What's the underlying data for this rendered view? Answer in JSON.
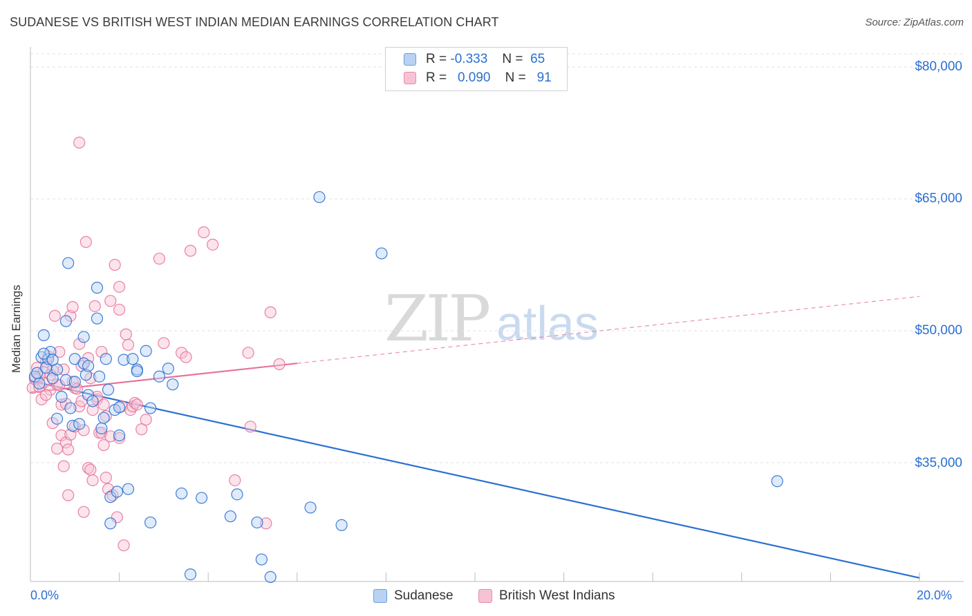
{
  "header": {
    "title": "SUDANESE VS BRITISH WEST INDIAN MEDIAN EARNINGS CORRELATION CHART",
    "source": "Source: ZipAtlas.com"
  },
  "watermark": {
    "zip": "ZIP",
    "atlas": "atlas"
  },
  "legend": {
    "rows": [
      {
        "r_label": "R =",
        "r_value": "-0.333",
        "n_label": "N =",
        "n_value": "65"
      },
      {
        "r_label": "R =",
        "r_value": "0.090",
        "n_label": "N =",
        "n_value": "91"
      }
    ]
  },
  "bottom_legend": {
    "sudanese": "Sudanese",
    "bwi": "British West Indians"
  },
  "x_axis": {
    "start_label": "0.0%",
    "end_label": "20.0%"
  },
  "y_ticks": [
    "$80,000",
    "$65,000",
    "$50,000",
    "$35,000"
  ],
  "colors": {
    "blue": "#2a6fd1",
    "blue_fill": "#b9d2f3",
    "pink": "#e8739a",
    "pink_fill": "#f7c3d4",
    "grid": "#e2e2e2"
  },
  "chart_data": {
    "type": "scatter",
    "title": "SUDANESE VS BRITISH WEST INDIAN MEDIAN EARNINGS CORRELATION CHART",
    "xlabel": "",
    "ylabel": "Median Earnings",
    "xlim": [
      0,
      20
    ],
    "ylim": [
      21000,
      83000
    ],
    "y_ticks": [
      35000,
      50000,
      65000,
      80000
    ],
    "x_ticks": [
      0,
      2,
      4,
      6,
      8,
      10,
      12,
      14,
      16,
      18,
      20
    ],
    "grid": true,
    "series": [
      {
        "name": "Sudanese",
        "color": "blue",
        "r": -0.333,
        "n": 65,
        "trend": {
          "x": [
            0,
            20
          ],
          "y": [
            44300,
            21900
          ],
          "style": "solid"
        },
        "points": [
          [
            0.1,
            44800
          ],
          [
            0.15,
            45200
          ],
          [
            0.2,
            44000
          ],
          [
            0.25,
            47000
          ],
          [
            0.3,
            49500
          ],
          [
            0.35,
            45800
          ],
          [
            0.4,
            46800
          ],
          [
            0.45,
            47600
          ],
          [
            0.5,
            44600
          ],
          [
            0.5,
            46700
          ],
          [
            0.6,
            45600
          ],
          [
            0.6,
            40000
          ],
          [
            0.7,
            42500
          ],
          [
            0.8,
            44400
          ],
          [
            0.8,
            51100
          ],
          [
            0.85,
            57700
          ],
          [
            0.9,
            41200
          ],
          [
            0.95,
            39200
          ],
          [
            1.0,
            46800
          ],
          [
            1.0,
            44200
          ],
          [
            1.1,
            39400
          ],
          [
            1.2,
            46300
          ],
          [
            1.2,
            49300
          ],
          [
            1.25,
            45000
          ],
          [
            1.3,
            46000
          ],
          [
            1.3,
            42700
          ],
          [
            1.4,
            42000
          ],
          [
            1.5,
            54900
          ],
          [
            1.5,
            51400
          ],
          [
            1.55,
            44800
          ],
          [
            1.6,
            38900
          ],
          [
            1.65,
            40100
          ],
          [
            1.7,
            46800
          ],
          [
            1.75,
            43300
          ],
          [
            1.8,
            31100
          ],
          [
            1.8,
            28100
          ],
          [
            1.9,
            41000
          ],
          [
            1.95,
            31700
          ],
          [
            2.0,
            41300
          ],
          [
            2.0,
            38100
          ],
          [
            2.1,
            46700
          ],
          [
            2.2,
            32000
          ],
          [
            2.3,
            46800
          ],
          [
            2.4,
            45600
          ],
          [
            2.4,
            45400
          ],
          [
            2.6,
            47700
          ],
          [
            2.7,
            41200
          ],
          [
            2.7,
            28200
          ],
          [
            2.9,
            44800
          ],
          [
            3.1,
            45700
          ],
          [
            3.2,
            43900
          ],
          [
            3.4,
            31500
          ],
          [
            3.6,
            22300
          ],
          [
            3.85,
            31000
          ],
          [
            4.5,
            28900
          ],
          [
            4.65,
            31400
          ],
          [
            5.1,
            28200
          ],
          [
            5.2,
            24000
          ],
          [
            5.4,
            22000
          ],
          [
            6.3,
            29900
          ],
          [
            6.5,
            65200
          ],
          [
            7.0,
            27900
          ],
          [
            7.9,
            58800
          ],
          [
            16.8,
            32900
          ],
          [
            0.3,
            47400
          ]
        ]
      },
      {
        "name": "British West Indians",
        "color": "pink",
        "r": 0.09,
        "n": 91,
        "trend": {
          "x": [
            0,
            6
          ],
          "y": [
            43000,
            46300
          ],
          "style": "solid"
        },
        "trend_extension": {
          "x": [
            6,
            20
          ],
          "y": [
            46300,
            53900
          ],
          "style": "dashed"
        },
        "points": [
          [
            0.05,
            43500
          ],
          [
            0.1,
            44500
          ],
          [
            0.15,
            45800
          ],
          [
            0.2,
            43600
          ],
          [
            0.25,
            42200
          ],
          [
            0.3,
            44100
          ],
          [
            0.35,
            46500
          ],
          [
            0.4,
            47100
          ],
          [
            0.45,
            43300
          ],
          [
            0.5,
            45500
          ],
          [
            0.5,
            39500
          ],
          [
            0.55,
            51700
          ],
          [
            0.6,
            36600
          ],
          [
            0.6,
            43900
          ],
          [
            0.65,
            47600
          ],
          [
            0.7,
            41600
          ],
          [
            0.7,
            38100
          ],
          [
            0.75,
            34600
          ],
          [
            0.8,
            41700
          ],
          [
            0.8,
            37300
          ],
          [
            0.85,
            36500
          ],
          [
            0.85,
            31300
          ],
          [
            0.9,
            51700
          ],
          [
            0.9,
            38200
          ],
          [
            0.95,
            52700
          ],
          [
            1.0,
            39100
          ],
          [
            1.0,
            43500
          ],
          [
            1.1,
            41400
          ],
          [
            1.1,
            48500
          ],
          [
            1.15,
            42000
          ],
          [
            1.2,
            38700
          ],
          [
            1.2,
            29400
          ],
          [
            1.25,
            60100
          ],
          [
            1.3,
            46900
          ],
          [
            1.3,
            34400
          ],
          [
            1.35,
            34200
          ],
          [
            1.4,
            33000
          ],
          [
            1.4,
            41000
          ],
          [
            1.45,
            52800
          ],
          [
            1.5,
            42200
          ],
          [
            1.55,
            38400
          ],
          [
            1.6,
            38400
          ],
          [
            1.6,
            47600
          ],
          [
            1.65,
            37000
          ],
          [
            1.7,
            40300
          ],
          [
            1.7,
            33300
          ],
          [
            1.75,
            32000
          ],
          [
            1.8,
            53400
          ],
          [
            1.85,
            31300
          ],
          [
            1.9,
            57500
          ],
          [
            1.95,
            28800
          ],
          [
            2.0,
            55000
          ],
          [
            2.0,
            52400
          ],
          [
            2.05,
            41400
          ],
          [
            2.1,
            25600
          ],
          [
            2.15,
            49600
          ],
          [
            2.2,
            48400
          ],
          [
            2.25,
            41000
          ],
          [
            2.3,
            41400
          ],
          [
            2.35,
            41800
          ],
          [
            2.5,
            38800
          ],
          [
            2.6,
            39900
          ],
          [
            2.9,
            58200
          ],
          [
            3.0,
            48600
          ],
          [
            3.4,
            47500
          ],
          [
            3.5,
            47000
          ],
          [
            3.6,
            59100
          ],
          [
            3.9,
            61200
          ],
          [
            4.1,
            59800
          ],
          [
            4.6,
            33000
          ],
          [
            4.9,
            47500
          ],
          [
            4.95,
            39100
          ],
          [
            5.3,
            28100
          ],
          [
            5.4,
            52100
          ],
          [
            5.6,
            46200
          ],
          [
            1.1,
            71400
          ],
          [
            0.2,
            44800
          ],
          [
            0.3,
            45300
          ],
          [
            0.45,
            45000
          ],
          [
            0.65,
            43800
          ],
          [
            0.75,
            45600
          ],
          [
            0.95,
            44200
          ],
          [
            1.05,
            43400
          ],
          [
            1.15,
            46000
          ],
          [
            1.35,
            44600
          ],
          [
            1.5,
            42500
          ],
          [
            1.65,
            41600
          ],
          [
            1.8,
            38000
          ],
          [
            2.0,
            37800
          ],
          [
            2.4,
            41600
          ],
          [
            0.35,
            42700
          ]
        ]
      }
    ]
  }
}
